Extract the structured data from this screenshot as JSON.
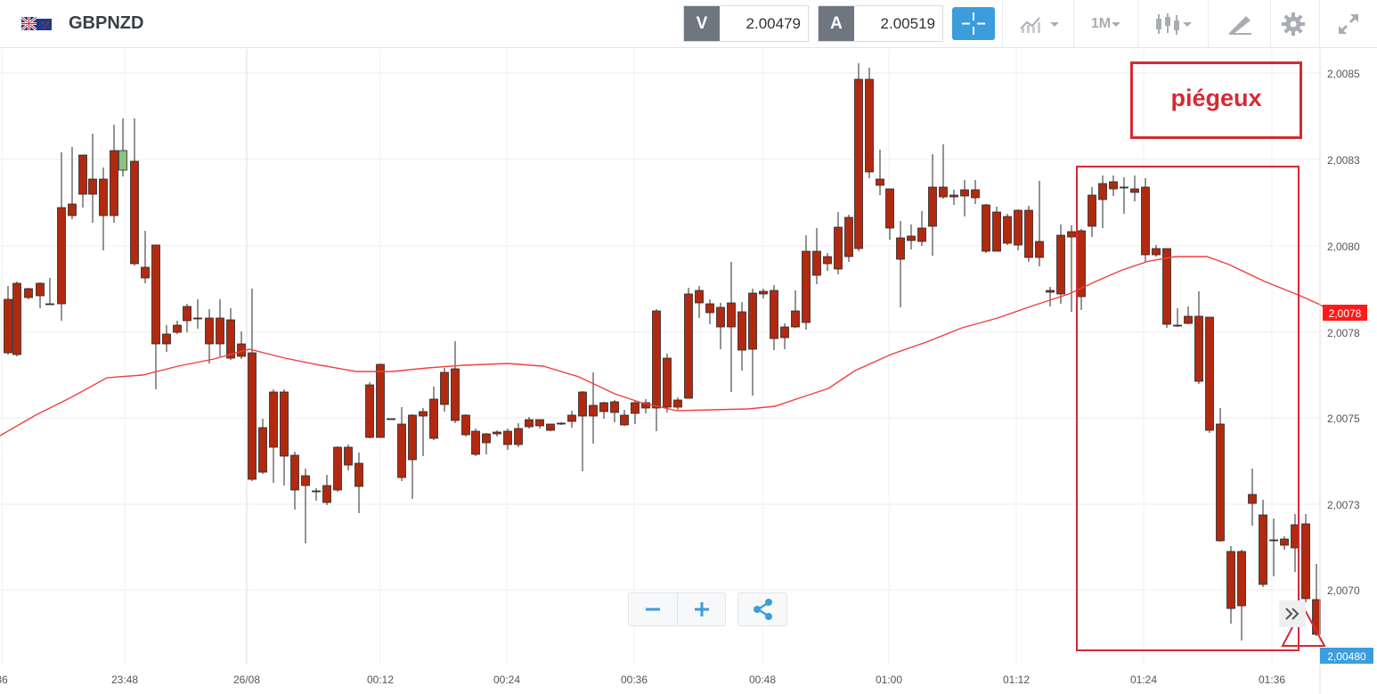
{
  "header": {
    "symbol": "GBPNZD",
    "sell_label": "V",
    "sell_price": "2.00479",
    "buy_label": "A",
    "buy_price": "2.00519",
    "timeframe": "1M"
  },
  "colors": {
    "bull": "#8fc07e",
    "bear": "#b12a10",
    "ma": "#f04040",
    "annotation": "#d42a35",
    "accent": "#3b9ddb"
  },
  "icons": [
    "flag-icon",
    "crosshair-icon",
    "indicators-icon",
    "chevron-down-icon",
    "candlestick-type-icon",
    "drawing-tools-icon",
    "gear-icon",
    "fullscreen-icon",
    "minus-icon",
    "plus-icon",
    "share-icon",
    "chevron-right-icon"
  ],
  "annotation": {
    "label": "piégeux"
  },
  "chart_data": {
    "type": "candlestick",
    "y_ticks": [
      "2,0085",
      "2,0083",
      "2,0080",
      "2,0078",
      "2,0075",
      "2,0073",
      "2,0070"
    ],
    "x_ticks": [
      "36",
      "23:48",
      "26/08",
      "00:12",
      "00:24",
      "00:36",
      "00:48",
      "01:00",
      "01:12",
      "01:24",
      "01:36"
    ],
    "ma_label": "2,0078",
    "last_price_label": "2,00480"
  }
}
